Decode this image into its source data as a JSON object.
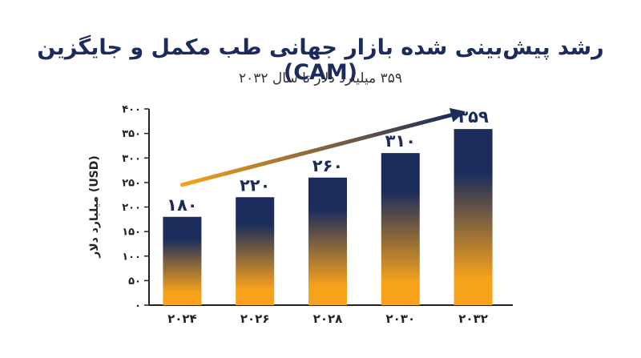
{
  "chart_data": {
    "type": "bar",
    "title": "رشد پیش‌بینی شده بازار جهانی طب مکمل و جایگزین (CAM)",
    "subtitle": "۳۵۹ میلیارد دلار تا سال ۲۰۳۲",
    "ylabel": "میلیارد دلار (USD)",
    "xlabel": "",
    "categories": [
      "۲۰۲۴",
      "۲۰۲۶",
      "۲۰۲۸",
      "۲۰۳۰",
      "۲۰۳۲"
    ],
    "values": [
      180,
      220,
      260,
      310,
      359
    ],
    "value_labels": [
      "۱۸۰",
      "۲۲۰",
      "۲۶۰",
      "۳۱۰",
      "۳۵۹"
    ],
    "ylim": [
      0,
      400
    ],
    "yticks": [
      0,
      50,
      100,
      150,
      200,
      250,
      300,
      350,
      400
    ],
    "ytick_labels": [
      "۰",
      "۵۰",
      "۱۰۰",
      "۱۵۰",
      "۲۰۰",
      "۲۵۰",
      "۳۰۰",
      "۳۵۰",
      "۴۰۰"
    ],
    "grid": false,
    "trend_arrow": true,
    "colors": {
      "bar_top": "#1b2c5c",
      "bar_bottom": "#f7a21b",
      "arrow_start": "#f7a21b",
      "arrow_end": "#1b2c5c",
      "axis": "#222222",
      "title": "#1b2c5c"
    }
  }
}
